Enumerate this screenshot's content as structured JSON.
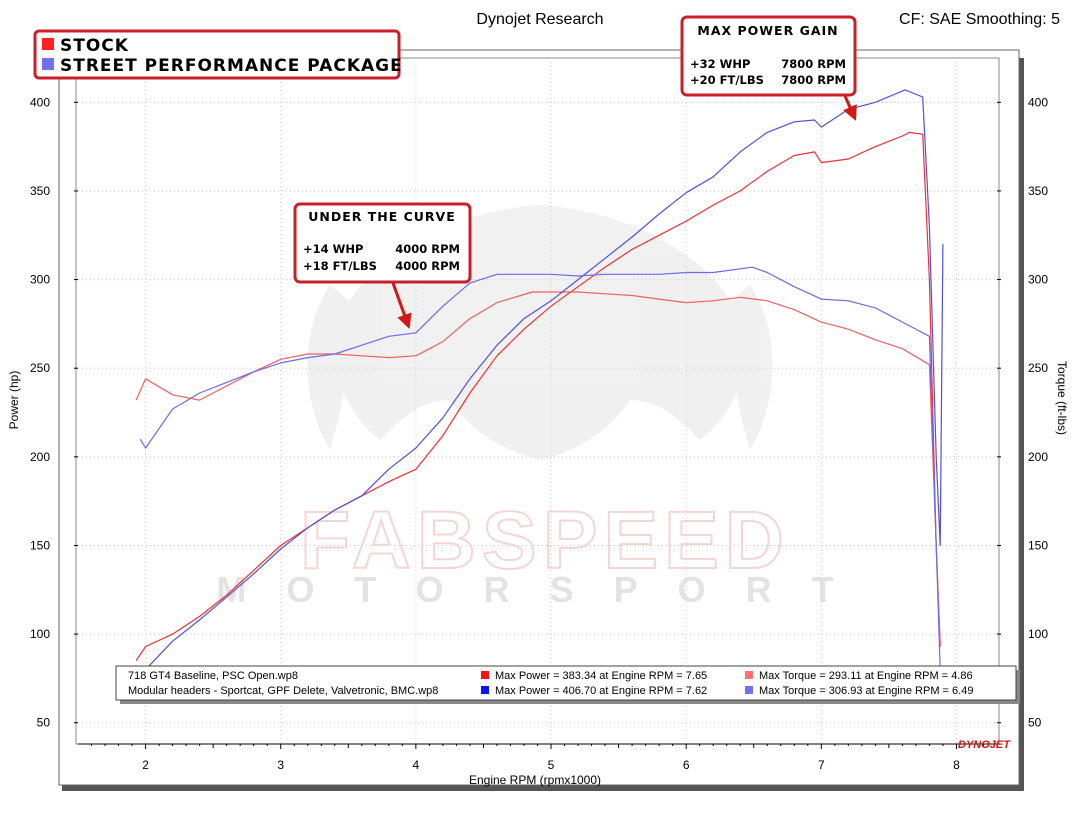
{
  "header": {
    "title": "Dynojet Research",
    "settings": "CF: SAE Smoothing: 5"
  },
  "legend_box": {
    "items": [
      {
        "label": "STOCK",
        "color": "#ff2020"
      },
      {
        "label": "STREET PERFORMANCE PACKAGE",
        "color": "#6f6ff0"
      }
    ]
  },
  "callouts": {
    "max_gain": {
      "title": "MAX POWER GAIN",
      "lines": [
        {
          "left": "+32 WHP",
          "right": "7800 RPM"
        },
        {
          "left": "+20 FT/LBS",
          "right": "7800 RPM"
        }
      ],
      "points_at_rpm": 7.35
    },
    "under_curve": {
      "title": "UNDER THE CURVE",
      "lines": [
        {
          "left": "+14 WHP",
          "right": "4000 RPM"
        },
        {
          "left": "+18 FT/LBS",
          "right": "4000 RPM"
        }
      ],
      "points_at_rpm": 3.97
    }
  },
  "watermark": {
    "brand": "FABSPEED",
    "sub": "MOTORSPORT"
  },
  "info_table": {
    "rows": [
      {
        "file": "718 GT4 Baseline, PSC Open.wp8",
        "power_color": "#ff1010",
        "power": "Max Power = 383.34 at Engine RPM = 7.65",
        "torque_color": "#ff7070",
        "torque": "Max Torque = 293.11 at Engine RPM = 4.86"
      },
      {
        "file": "Modular headers - Sportcat, GPF Delete, Valvetronic, BMC.wp8",
        "power_color": "#1010ff",
        "power": "Max Power = 406.70 at Engine RPM = 7.62",
        "torque_color": "#7070ff",
        "torque": "Max Torque = 306.93 at Engine RPM = 6.49"
      }
    ]
  },
  "logo": "DYNOJET",
  "chart_data": {
    "type": "line",
    "xlabel": "Engine RPM (rpmx1000)",
    "ylabel": "Power (hp)",
    "y2label": "Torque (ft-lbs)",
    "xlim": [
      1.5,
      8.3
    ],
    "ylim": [
      38,
      425
    ],
    "x_ticks": [
      2,
      3,
      4,
      5,
      6,
      7,
      8
    ],
    "y_ticks": [
      50,
      100,
      150,
      200,
      250,
      300,
      350,
      400
    ],
    "grid": true,
    "series": [
      {
        "name": "STOCK",
        "measure": "power",
        "color": "#f03030",
        "x": [
          1.93,
          2.0,
          2.2,
          2.4,
          2.6,
          2.8,
          3.0,
          3.2,
          3.4,
          3.6,
          3.8,
          4.0,
          4.2,
          4.4,
          4.6,
          4.8,
          5.0,
          5.2,
          5.4,
          5.6,
          5.8,
          6.0,
          6.2,
          6.4,
          6.6,
          6.8,
          6.95,
          7.0,
          7.2,
          7.4,
          7.6,
          7.65,
          7.75,
          7.8,
          7.85,
          7.88
        ],
        "y": [
          85,
          93,
          100,
          110,
          122,
          136,
          150,
          160,
          170,
          178,
          186,
          193,
          212,
          236,
          257,
          272,
          285,
          296,
          307,
          317,
          325,
          333,
          342,
          350,
          361,
          370,
          372,
          366,
          368,
          375,
          381,
          383,
          382,
          300,
          150,
          93
        ]
      },
      {
        "name": "STOCK",
        "measure": "torque",
        "color": "#f06060",
        "x": [
          1.93,
          2.0,
          2.2,
          2.4,
          2.6,
          2.8,
          3.0,
          3.2,
          3.4,
          3.6,
          3.8,
          4.0,
          4.2,
          4.4,
          4.6,
          4.86,
          5.0,
          5.2,
          5.4,
          5.6,
          5.8,
          6.0,
          6.2,
          6.4,
          6.6,
          6.8,
          7.0,
          7.2,
          7.4,
          7.6,
          7.8,
          7.85,
          7.88
        ],
        "y": [
          232,
          244,
          235,
          232,
          240,
          248,
          255,
          258,
          258,
          257,
          256,
          257,
          265,
          278,
          287,
          293,
          293,
          293,
          292,
          291,
          289,
          287,
          288,
          290,
          288,
          283,
          276,
          272,
          266,
          261,
          252,
          150,
          95
        ]
      },
      {
        "name": "STREET PERFORMANCE PACKAGE",
        "measure": "power",
        "color": "#5050e0",
        "x": [
          1.96,
          2.0,
          2.2,
          2.4,
          2.6,
          2.8,
          3.0,
          3.2,
          3.4,
          3.6,
          3.8,
          4.0,
          4.2,
          4.4,
          4.6,
          4.8,
          5.0,
          5.2,
          5.4,
          5.6,
          5.8,
          6.0,
          6.2,
          6.4,
          6.6,
          6.8,
          6.95,
          7.0,
          7.2,
          7.4,
          7.62,
          7.75,
          7.8,
          7.85,
          7.88,
          7.9
        ],
        "y": [
          78,
          80,
          96,
          108,
          121,
          134,
          148,
          160,
          170,
          178,
          193,
          205,
          222,
          244,
          263,
          278,
          288,
          300,
          312,
          324,
          337,
          349,
          358,
          372,
          383,
          389,
          390,
          386,
          396,
          400,
          407,
          403,
          330,
          200,
          150,
          320
        ]
      },
      {
        "name": "STREET PERFORMANCE PACKAGE",
        "measure": "torque",
        "color": "#6a6af0",
        "x": [
          1.96,
          2.0,
          2.2,
          2.4,
          2.6,
          2.8,
          3.0,
          3.2,
          3.4,
          3.6,
          3.8,
          4.0,
          4.2,
          4.4,
          4.6,
          4.8,
          5.0,
          5.2,
          5.4,
          5.6,
          5.8,
          6.0,
          6.2,
          6.49,
          6.6,
          6.8,
          7.0,
          7.2,
          7.4,
          7.6,
          7.8,
          7.85,
          7.88
        ],
        "y": [
          210,
          205,
          227,
          236,
          242,
          248,
          253,
          256,
          258,
          263,
          268,
          270,
          285,
          298,
          303,
          303,
          303,
          302,
          303,
          303,
          303,
          304,
          304,
          307,
          304,
          296,
          289,
          288,
          284,
          276,
          268,
          150,
          80
        ]
      }
    ]
  }
}
